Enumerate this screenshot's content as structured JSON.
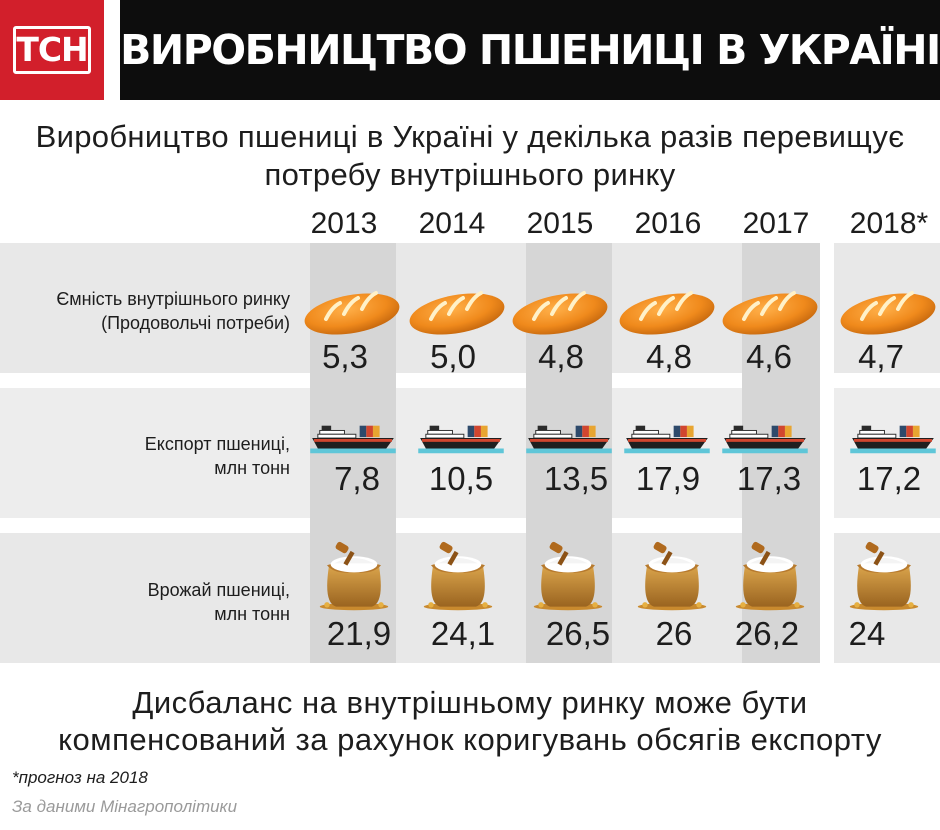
{
  "logo": {
    "text": "ТСН",
    "color": "#d21f2b"
  },
  "title": "ВИРОБНИЦТВО ПШЕНИЦІ В УКРАЇНІ",
  "subtitle_line1": "Виробництво пшениці в Україні у декілька разів перевищує",
  "subtitle_line2": "потребу внутрішнього ринку",
  "years": [
    "2013",
    "2014",
    "2015",
    "2016",
    "2017",
    "2018*"
  ],
  "rows": [
    {
      "label_line1": "Ємність внутрішнього ринку",
      "label_line2": "(Продовольчі потреби)",
      "icon": "bread-icon",
      "values": [
        "5,3",
        "5,0",
        "4,8",
        "4,8",
        "4,6",
        "4,7"
      ]
    },
    {
      "label_line1": "Експорт пшениці,",
      "label_line2": "млн тонн",
      "icon": "cargo-ship-icon",
      "values": [
        "7,8",
        "10,5",
        "13,5",
        "17,9",
        "17,3",
        "17,2"
      ]
    },
    {
      "label_line1": "Врожай пшениці,",
      "label_line2": "млн тонн",
      "icon": "grain-sack-icon",
      "values": [
        "21,9",
        "24,1",
        "26,5",
        "26",
        "26,2",
        "24"
      ]
    }
  ],
  "bottom_line1": "Дисбаланс на внутрішньому ринку може бути",
  "bottom_line2": "компенсований за рахунок коригувань обсягів експорту",
  "footnote": "*прогноз на 2018",
  "source": "За даними Мінагрополітики"
}
